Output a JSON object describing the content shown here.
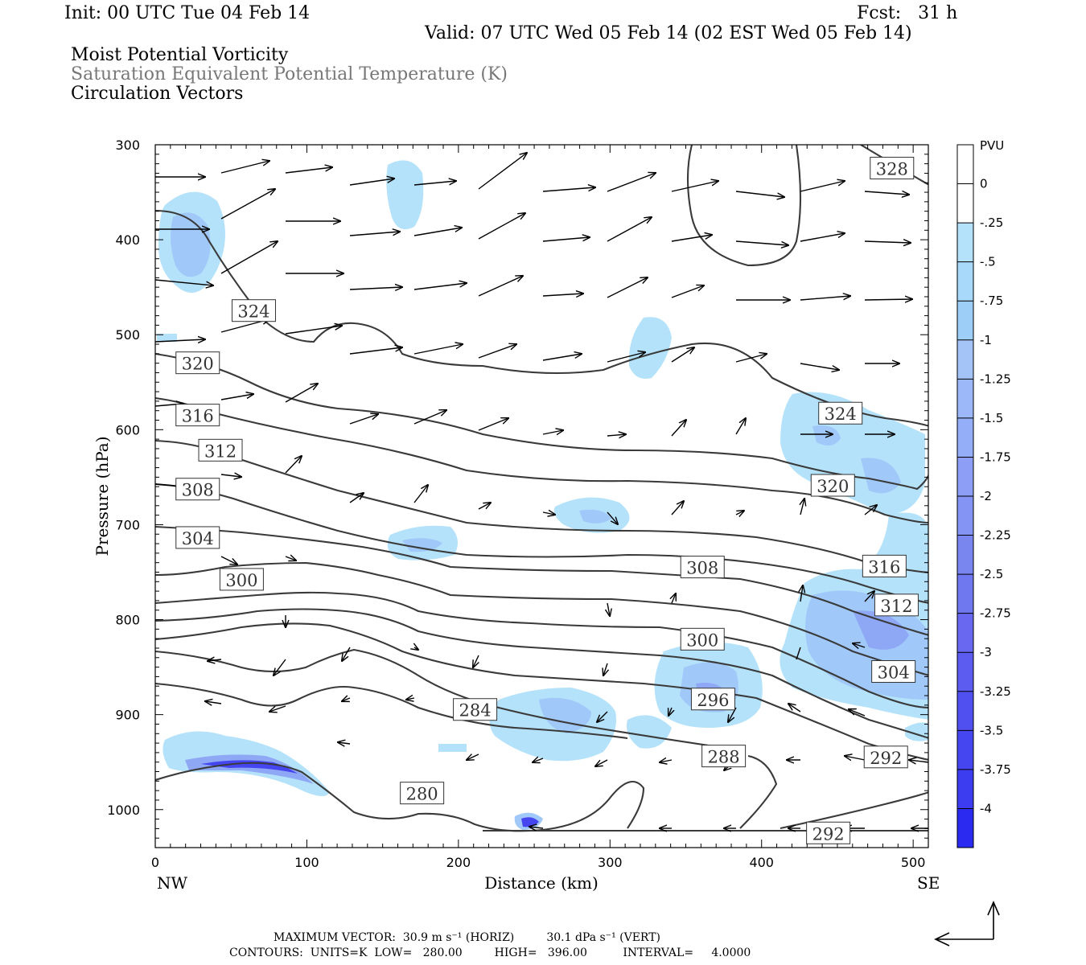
{
  "header": {
    "init": "Init: 00 UTC Tue 04 Feb 14",
    "fcst": "Fcst:   31 h",
    "valid": "Valid: 07 UTC Wed 05 Feb 14 (02 EST Wed 05 Feb 14)",
    "field1": "Moist Potential Vorticity",
    "field2": "Saturation Equivalent Potential Temperature (K)",
    "field3": "Circulation Vectors"
  },
  "footer": {
    "max_vector": "MAXIMUM VECTOR:  30.9 m s⁻¹ (HORIZ)         30.1 dPa s⁻¹ (VERT)",
    "contours": "CONTOURS:  UNITS=K  LOW=   280.00         HIGH=   396.00          INTERVAL=     4.0000"
  },
  "colors": {
    "contour": "#3a3a3a",
    "shade_light": "#b4e2fa",
    "shade_mid": "#9cc4f8",
    "shade_dark": "#7a86f0",
    "shade_deep": "#3c3cf0"
  },
  "chart_data": {
    "type": "cross-section",
    "xlabel": "Distance (km)",
    "ylabel": "Pressure (hPa)",
    "x_ticks": [
      "0",
      "100",
      "200",
      "300",
      "400",
      "500"
    ],
    "x_tick_values": [
      0,
      100,
      200,
      300,
      400,
      500
    ],
    "xlim": [
      0,
      510
    ],
    "x_end_labels": {
      "left": "NW",
      "right": "SE"
    },
    "y_ticks": [
      "300",
      "400",
      "500",
      "600",
      "700",
      "800",
      "900",
      "1000"
    ],
    "y_tick_values": [
      300,
      400,
      500,
      600,
      700,
      800,
      900,
      1000
    ],
    "ylim": [
      300,
      1040
    ],
    "colorbar": {
      "unit": "PVU",
      "labels": [
        "0",
        "-.25",
        "-.5",
        "-.75",
        "-1",
        "-1.25",
        "-1.5",
        "-1.75",
        "-2",
        "-2.25",
        "-2.5",
        "-2.75",
        "-3",
        "-3.25",
        "-3.5",
        "-3.75",
        "-4"
      ],
      "colors": [
        "#ffffff",
        "#ffffff",
        "#b4e2fa",
        "#a8d8fa",
        "#9ccef8",
        "#a4c4f8",
        "#9cb8f8",
        "#94aef8",
        "#8c9ef6",
        "#8494f4",
        "#7a86f0",
        "#7078f0",
        "#6868f0",
        "#5c5cf0",
        "#5050f0",
        "#4646f0",
        "#3c3cf0",
        "#2a2af0"
      ]
    },
    "contour_labels": [
      {
        "text": "328",
        "x": 486,
        "p": 325
      },
      {
        "text": "324",
        "x": 65,
        "p": 475
      },
      {
        "text": "320",
        "x": 28,
        "p": 530
      },
      {
        "text": "316",
        "x": 28,
        "p": 585
      },
      {
        "text": "312",
        "x": 43,
        "p": 622
      },
      {
        "text": "308",
        "x": 28,
        "p": 663
      },
      {
        "text": "304",
        "x": 28,
        "p": 714
      },
      {
        "text": "300",
        "x": 57,
        "p": 758
      },
      {
        "text": "324",
        "x": 452,
        "p": 583
      },
      {
        "text": "320",
        "x": 447,
        "p": 659
      },
      {
        "text": "316",
        "x": 481,
        "p": 744
      },
      {
        "text": "312",
        "x": 489,
        "p": 785
      },
      {
        "text": "308",
        "x": 361,
        "p": 745
      },
      {
        "text": "300",
        "x": 361,
        "p": 821
      },
      {
        "text": "296",
        "x": 368,
        "p": 884
      },
      {
        "text": "304",
        "x": 487,
        "p": 855
      },
      {
        "text": "284",
        "x": 211,
        "p": 895
      },
      {
        "text": "288",
        "x": 375,
        "p": 944
      },
      {
        "text": "292",
        "x": 482,
        "p": 945
      },
      {
        "text": "280",
        "x": 176,
        "p": 983
      },
      {
        "text": "292",
        "x": 444,
        "p": 1025
      }
    ]
  }
}
